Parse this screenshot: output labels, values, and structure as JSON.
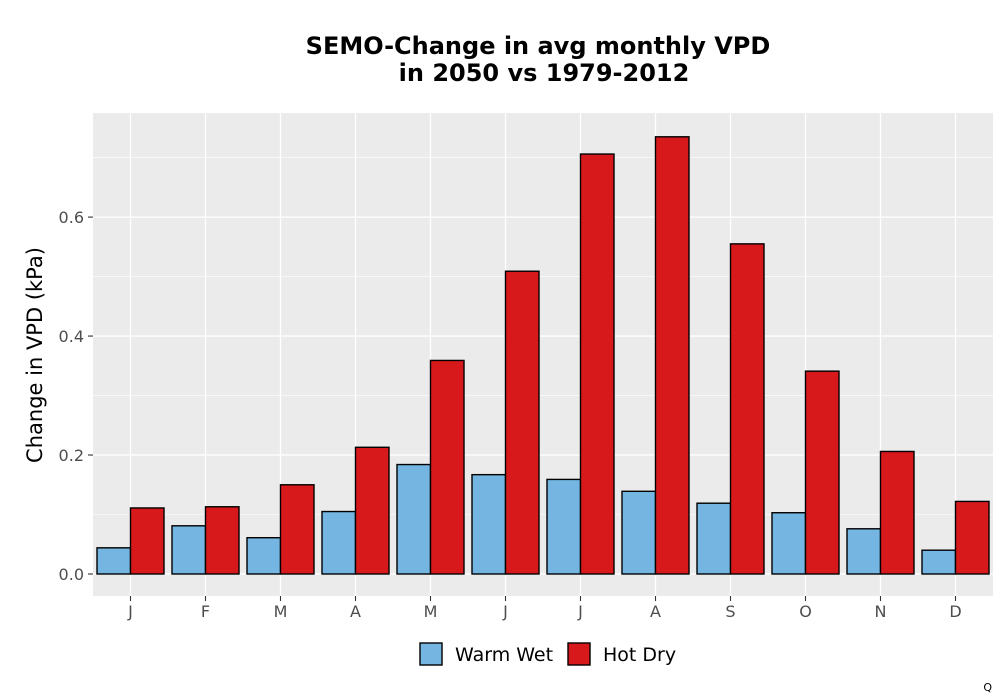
{
  "chart_data": {
    "type": "bar",
    "title_line1": "SEMO-Change in avg monthly VPD",
    "title_line2": "in 2050 vs 1979-2012",
    "xlabel": "",
    "ylabel": "Change in VPD (kPa)",
    "categories": [
      "J",
      "F",
      "M",
      "A",
      "M",
      "J",
      "J",
      "A",
      "S",
      "O",
      "N",
      "D"
    ],
    "series": [
      {
        "name": "Warm Wet",
        "color": "#74b6e1",
        "values": [
          0.044,
          0.081,
          0.061,
          0.105,
          0.184,
          0.167,
          0.159,
          0.139,
          0.119,
          0.103,
          0.076,
          0.04
        ]
      },
      {
        "name": "Hot Dry",
        "color": "#d7191c",
        "values": [
          0.111,
          0.113,
          0.15,
          0.213,
          0.359,
          0.509,
          0.706,
          0.735,
          0.555,
          0.341,
          0.206,
          0.122
        ]
      }
    ],
    "ylim": [
      -0.037,
      0.775
    ],
    "yticks": [
      0.0,
      0.2,
      0.4,
      0.6
    ],
    "ytick_labels": [
      "0.0",
      "0.2",
      "0.4",
      "0.6"
    ],
    "grid": true,
    "legend_position": "bottom",
    "panel_color": "#ebebeb"
  },
  "corner_mark": "Q"
}
